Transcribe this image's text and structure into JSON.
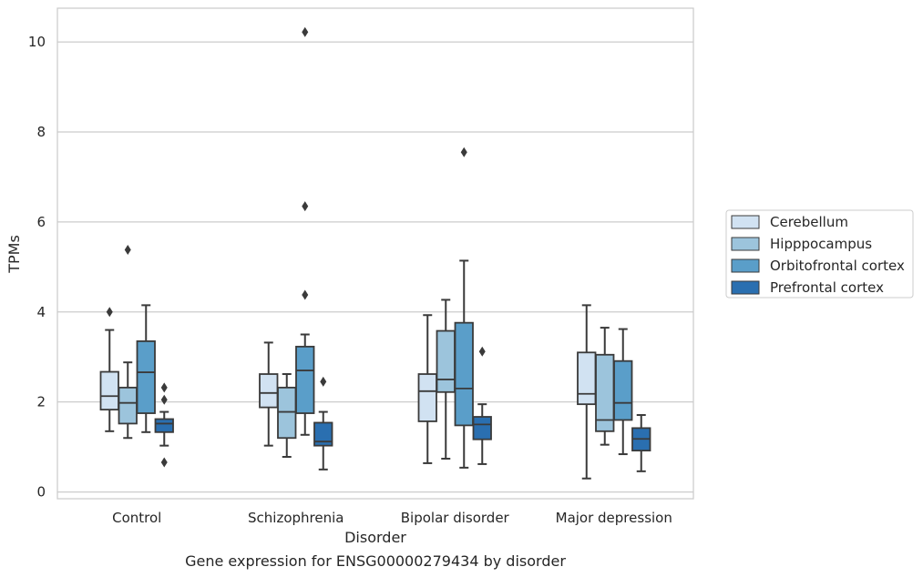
{
  "chart_data": {
    "type": "box",
    "title": "",
    "caption": "Gene expression for ENSG00000279434 by disorder",
    "xlabel": "Disorder",
    "ylabel": "TPMs",
    "ylim": [
      -0.15,
      10.75
    ],
    "yticks": [
      0,
      2,
      4,
      6,
      8,
      10
    ],
    "grid": "horizontal",
    "legend_position": "right",
    "categories": [
      "Control",
      "Schizophrenia",
      "Bipolar disorder",
      "Major depression"
    ],
    "series": [
      {
        "name": "Cerebellum",
        "color": "#d1e2f2",
        "boxes": [
          {
            "whislo": 1.35,
            "q1": 1.83,
            "med": 2.13,
            "q3": 2.67,
            "whishi": 3.6,
            "fliers": [
              4.0
            ]
          },
          {
            "whislo": 1.03,
            "q1": 1.88,
            "med": 2.2,
            "q3": 2.62,
            "whishi": 3.32,
            "fliers": []
          },
          {
            "whislo": 0.64,
            "q1": 1.57,
            "med": 2.24,
            "q3": 2.62,
            "whishi": 3.93,
            "fliers": []
          },
          {
            "whislo": 0.3,
            "q1": 1.95,
            "med": 2.18,
            "q3": 3.1,
            "whishi": 4.15,
            "fliers": []
          }
        ]
      },
      {
        "name": "Hipppocampus",
        "color": "#9cc4dc",
        "boxes": [
          {
            "whislo": 1.2,
            "q1": 1.52,
            "med": 1.98,
            "q3": 2.32,
            "whishi": 2.88,
            "fliers": [
              5.38
            ]
          },
          {
            "whislo": 0.78,
            "q1": 1.2,
            "med": 1.78,
            "q3": 2.32,
            "whishi": 2.62,
            "fliers": []
          },
          {
            "whislo": 0.74,
            "q1": 2.22,
            "med": 2.5,
            "q3": 3.58,
            "whishi": 4.27,
            "fliers": []
          },
          {
            "whislo": 1.05,
            "q1": 1.35,
            "med": 1.6,
            "q3": 3.05,
            "whishi": 3.65,
            "fliers": []
          }
        ]
      },
      {
        "name": "Orbitofrontal cortex",
        "color": "#5a9ec9",
        "boxes": [
          {
            "whislo": 1.33,
            "q1": 1.75,
            "med": 2.66,
            "q3": 3.35,
            "whishi": 4.15,
            "fliers": []
          },
          {
            "whislo": 1.27,
            "q1": 1.75,
            "med": 2.7,
            "q3": 3.23,
            "whishi": 3.5,
            "fliers": [
              4.38,
              6.35,
              10.22
            ]
          },
          {
            "whislo": 0.54,
            "q1": 1.48,
            "med": 2.3,
            "q3": 3.76,
            "whishi": 5.14,
            "fliers": [
              7.55
            ]
          },
          {
            "whislo": 0.84,
            "q1": 1.6,
            "med": 1.98,
            "q3": 2.91,
            "whishi": 3.62,
            "fliers": []
          }
        ]
      },
      {
        "name": "Prefrontal cortex",
        "color": "#2a6fb0",
        "boxes": [
          {
            "whislo": 1.03,
            "q1": 1.33,
            "med": 1.52,
            "q3": 1.62,
            "whishi": 1.78,
            "fliers": [
              2.32,
              2.05,
              0.66
            ]
          },
          {
            "whislo": 0.5,
            "q1": 1.03,
            "med": 1.12,
            "q3": 1.54,
            "whishi": 1.78,
            "fliers": [
              2.45
            ]
          },
          {
            "whislo": 0.62,
            "q1": 1.17,
            "med": 1.5,
            "q3": 1.67,
            "whishi": 1.95,
            "fliers": [
              3.12
            ]
          },
          {
            "whislo": 0.46,
            "q1": 0.92,
            "med": 1.18,
            "q3": 1.42,
            "whishi": 1.71,
            "fliers": []
          }
        ]
      }
    ]
  }
}
